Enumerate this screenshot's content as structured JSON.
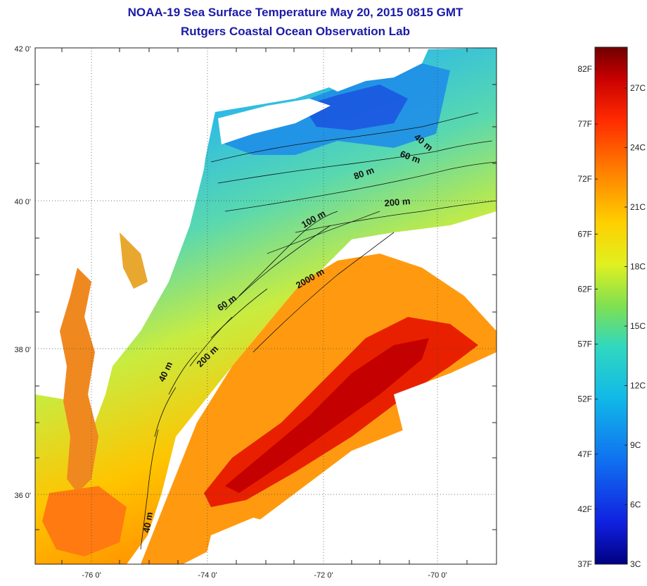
{
  "title": "NOAA-19 Sea Surface Temperature May 20, 2015 0815 GMT",
  "subtitle": "Rutgers Coastal Ocean Observation Lab",
  "lat_ticks": [
    "42 0'",
    "40 0'",
    "38 0'",
    "36 0'"
  ],
  "lon_ticks": [
    "-76 0'",
    "-74 0'",
    "-72 0'",
    "-70 0'"
  ],
  "contour_labels": [
    "40 m",
    "60 m",
    "80 m",
    "200 m",
    "100 m",
    "2000 m",
    "60 m",
    "200 m",
    "40 m",
    "40 m"
  ],
  "colorbar": {
    "fahrenheit": [
      "82F",
      "77F",
      "72F",
      "67F",
      "62F",
      "57F",
      "52F",
      "47F",
      "42F",
      "37F"
    ],
    "celsius": [
      "27C",
      "24C",
      "21C",
      "18C",
      "15C",
      "12C",
      "9C",
      "6C",
      "3C"
    ],
    "colors": [
      "#7a0000",
      "#c80000",
      "#ff2a00",
      "#ff7a00",
      "#ffc800",
      "#e8f020",
      "#90e040",
      "#30d0a0",
      "#10b8e8",
      "#1070f0",
      "#1030e0",
      "#000090"
    ]
  },
  "colors": {
    "land": "#ffffff",
    "cloud": "#ffffff",
    "title": "#1a1aa6"
  }
}
